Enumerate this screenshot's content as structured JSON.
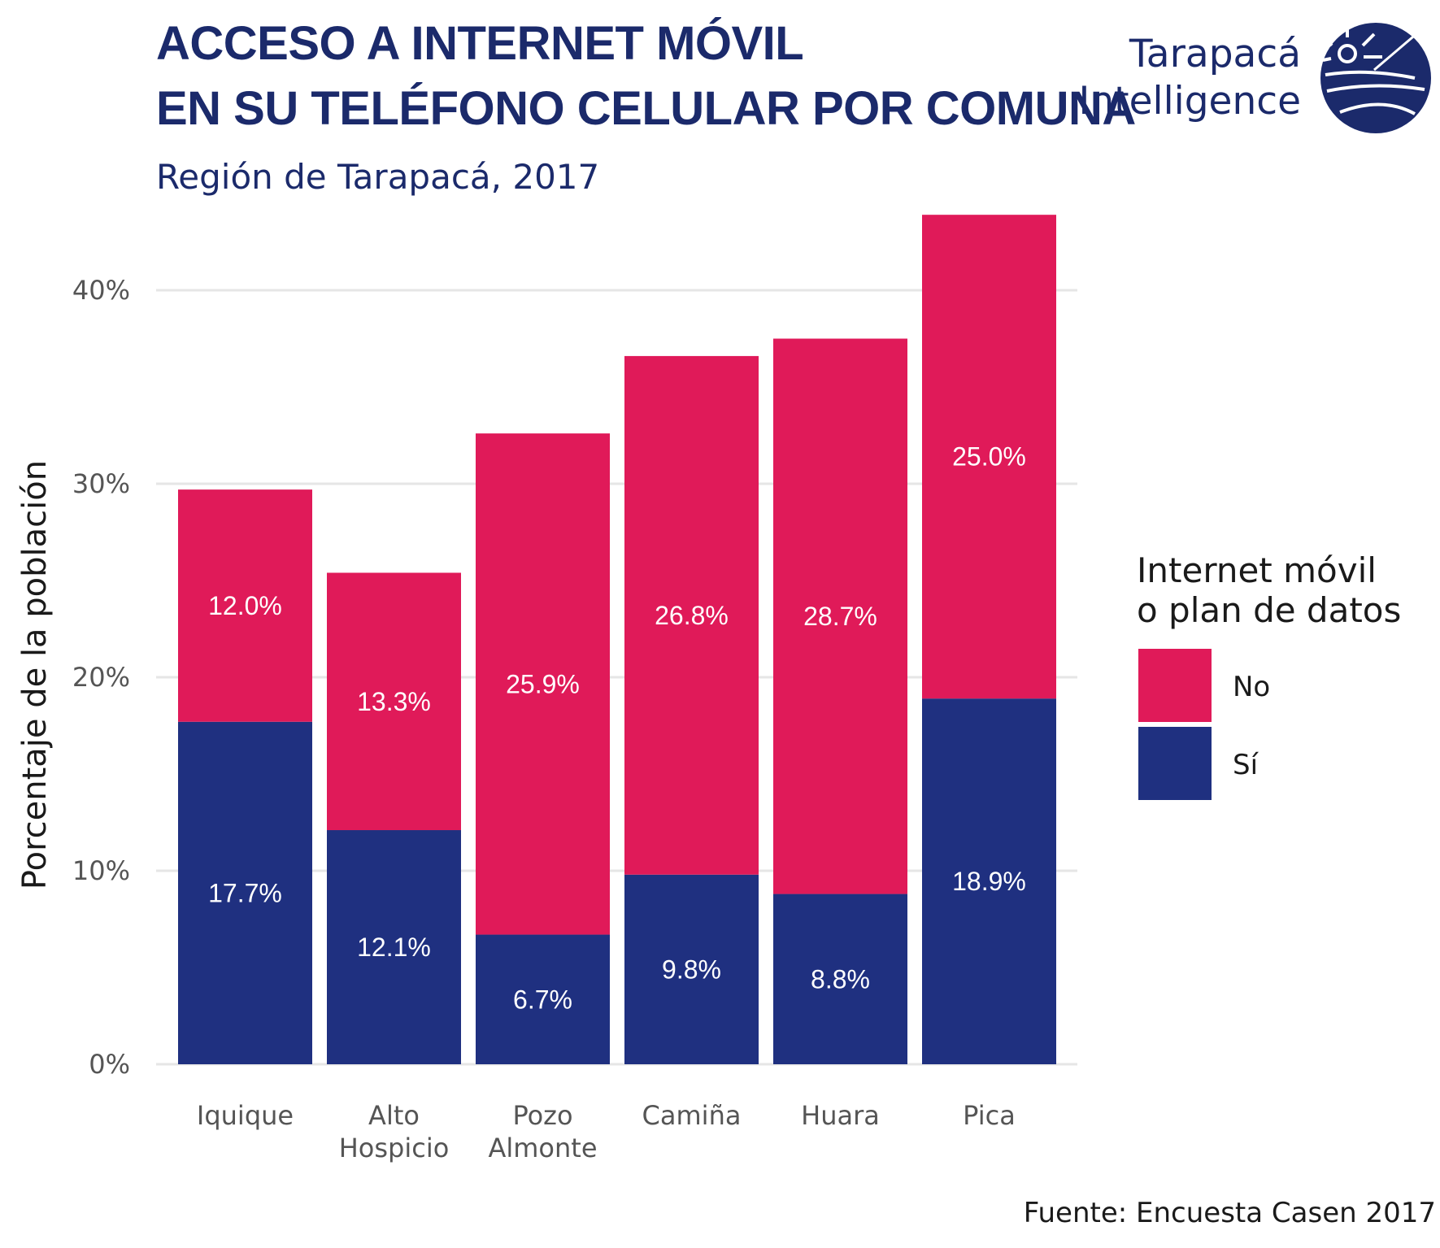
{
  "colors": {
    "no": "#e01a59",
    "si": "#1f3080",
    "title": "#1b2a6b",
    "grid": "#e6e6e6"
  },
  "logo": {
    "line1": "Tarapacá",
    "line2": "Intelligence",
    "icon": "sun-globe-logo-icon"
  },
  "chart_data": {
    "type": "bar",
    "stacked": true,
    "title": "ACCESO A INTERNET MÓVIL\nEN SU TELÉFONO CELULAR POR COMUNA",
    "title_lines": [
      "ACCESO A INTERNET MÓVIL",
      "EN SU TELÉFONO CELULAR POR COMUNA"
    ],
    "subtitle": "Región de Tarapacá, 2017",
    "xlabel": "",
    "ylabel": "Porcentaje de la población",
    "ylim": [
      0,
      44
    ],
    "yticks": [
      0,
      10,
      20,
      30,
      40
    ],
    "ytick_labels": [
      "0%",
      "10%",
      "20%",
      "30%",
      "40%"
    ],
    "grid": true,
    "categories": [
      [
        "Iquique"
      ],
      [
        "Alto",
        "Hospicio"
      ],
      [
        "Pozo",
        "Almonte"
      ],
      [
        "Camiña"
      ],
      [
        "Huara"
      ],
      [
        "Pica"
      ]
    ],
    "series": [
      {
        "name": "Sí",
        "values": [
          17.7,
          12.1,
          6.7,
          9.8,
          8.8,
          18.9
        ],
        "labels": [
          "17.7%",
          "12.1%",
          "6.7%",
          "9.8%",
          "8.8%",
          "18.9%"
        ]
      },
      {
        "name": "No",
        "values": [
          12.0,
          13.3,
          25.9,
          26.8,
          28.7,
          25.0
        ],
        "labels": [
          "12.0%",
          "13.3%",
          "25.9%",
          "26.8%",
          "28.7%",
          "25.0%"
        ]
      }
    ],
    "legend": {
      "title_lines": [
        "Internet móvil",
        "o plan de datos"
      ],
      "position": "right",
      "entries": [
        "No",
        "Sí"
      ]
    },
    "source": "Fuente: Encuesta Casen 2017"
  }
}
